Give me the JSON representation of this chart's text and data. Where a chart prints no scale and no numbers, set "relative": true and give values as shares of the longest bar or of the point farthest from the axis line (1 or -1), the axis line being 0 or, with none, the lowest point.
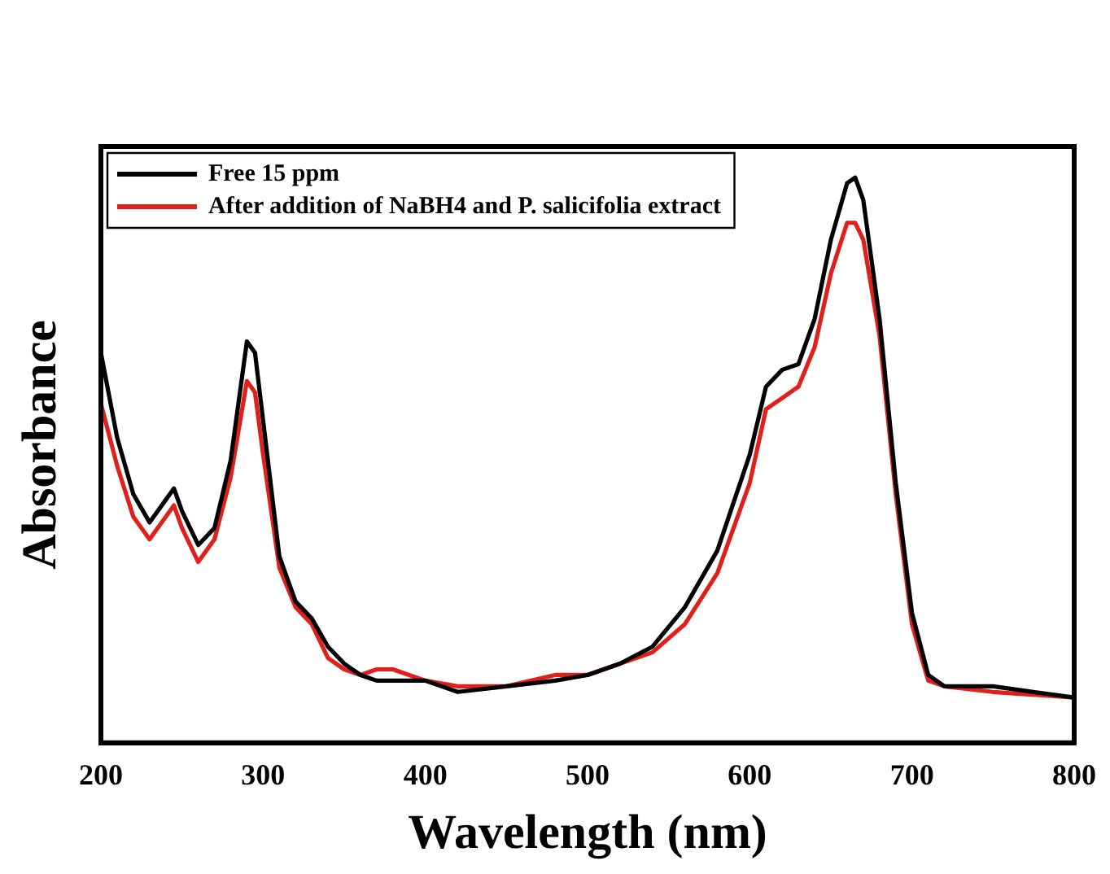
{
  "chart_data": {
    "type": "line",
    "relative": true,
    "xlabel": "Wavelength (nm)",
    "ylabel": "Absorbance",
    "xlim": [
      200,
      800
    ],
    "xticks": [
      200,
      300,
      400,
      500,
      600,
      700,
      800
    ],
    "tick_labels": "x",
    "grid": false,
    "legend": "top left",
    "marker": "none",
    "line_style": "solid",
    "x": [
      200,
      210,
      220,
      230,
      240,
      245,
      250,
      260,
      270,
      280,
      290,
      295,
      300,
      310,
      320,
      330,
      340,
      350,
      360,
      370,
      380,
      390,
      400,
      420,
      450,
      480,
      500,
      520,
      540,
      560,
      580,
      600,
      610,
      620,
      630,
      640,
      650,
      660,
      665,
      670,
      680,
      690,
      700,
      710,
      720,
      750,
      800
    ],
    "series": [
      {
        "name": "Free 15 ppm",
        "color": "#000000",
        "values": [
          0.69,
          0.54,
          0.44,
          0.39,
          0.43,
          0.45,
          0.41,
          0.35,
          0.38,
          0.5,
          0.71,
          0.69,
          0.57,
          0.33,
          0.25,
          0.22,
          0.17,
          0.14,
          0.12,
          0.11,
          0.11,
          0.11,
          0.11,
          0.09,
          0.1,
          0.11,
          0.12,
          0.14,
          0.17,
          0.24,
          0.34,
          0.51,
          0.63,
          0.66,
          0.67,
          0.75,
          0.89,
          0.99,
          1.0,
          0.96,
          0.75,
          0.46,
          0.23,
          0.12,
          0.1,
          0.1,
          0.08
        ]
      },
      {
        "name": "After addition of NaBH4 and P. salicifolia extract",
        "color": "#e0201b",
        "values": [
          0.6,
          0.49,
          0.4,
          0.36,
          0.4,
          0.42,
          0.38,
          0.32,
          0.36,
          0.47,
          0.64,
          0.62,
          0.51,
          0.31,
          0.24,
          0.21,
          0.15,
          0.13,
          0.12,
          0.13,
          0.13,
          0.12,
          0.11,
          0.1,
          0.1,
          0.12,
          0.12,
          0.14,
          0.16,
          0.21,
          0.3,
          0.46,
          0.59,
          0.61,
          0.63,
          0.7,
          0.83,
          0.92,
          0.92,
          0.89,
          0.72,
          0.44,
          0.21,
          0.11,
          0.1,
          0.09,
          0.08
        ]
      }
    ]
  }
}
